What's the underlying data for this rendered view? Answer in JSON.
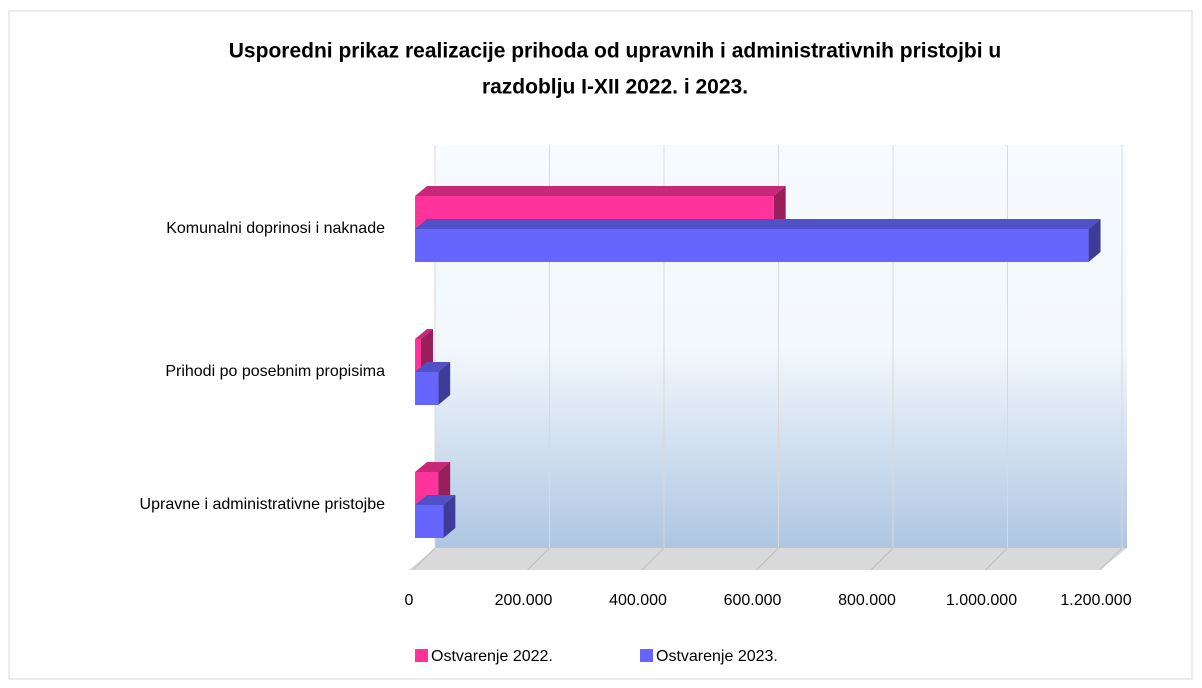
{
  "chart_data": {
    "type": "bar3d_horizontal",
    "title": "Usporedni prikaz realizacije prihoda od upravnih i administrativnih pristojbi u",
    "title_line2": "razdoblju I-XII 2022. i 2023.",
    "categories": [
      "Komunalni doprinosi i naknade",
      "Prihodi po posebnim propisima",
      "Upravne i administrativne pristojbe"
    ],
    "series": [
      {
        "name": "Ostvarenje 2022.",
        "color": "#ff3399",
        "values": [
          630000,
          14000,
          44000
        ]
      },
      {
        "name": "Ostvarenje 2023.",
        "color": "#6666ff",
        "values": [
          1180000,
          44000,
          53000
        ]
      }
    ],
    "xlim": [
      0,
      1200000
    ],
    "xticks": [
      0,
      {
        "value": 200000,
        "label": "200.000"
      },
      {
        "value": 400000,
        "label": "400.000"
      },
      {
        "value": 600000,
        "label": "600.000"
      },
      {
        "value": 800000,
        "label": "800.000"
      },
      {
        "value": 1000000,
        "label": "1.000.000"
      },
      {
        "value": 1200000,
        "label": "1.200.000"
      }
    ],
    "grid": true,
    "legend": "bottom"
  }
}
